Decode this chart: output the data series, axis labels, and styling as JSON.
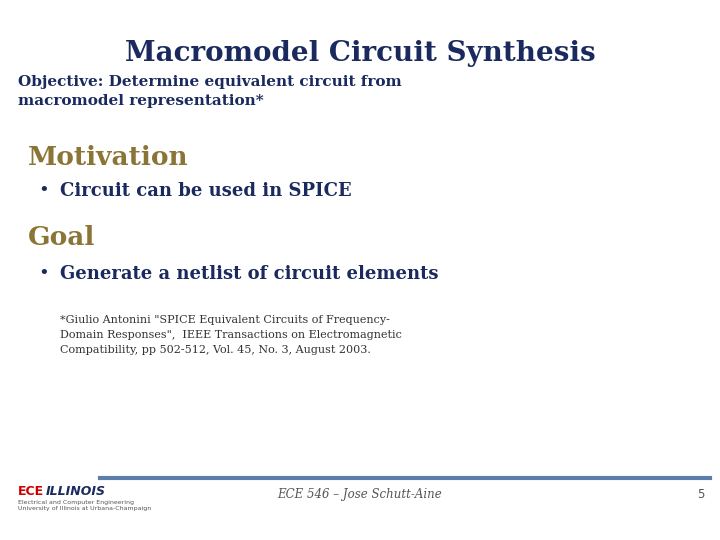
{
  "title": "Macromodel Circuit Synthesis",
  "title_color": "#1a2a5e",
  "title_fontsize": 20,
  "objective_text": "Objective: Determine equivalent circuit from\nmacromodel representation*",
  "objective_color": "#1a2a5e",
  "objective_fontsize": 11,
  "motivation_label": "Motivation",
  "motivation_color": "#8B7536",
  "motivation_fontsize": 19,
  "bullet1_text": "Circuit can be used in SPICE",
  "bullet1_color": "#1a2a5e",
  "bullet1_fontsize": 13,
  "goal_label": "Goal",
  "goal_color": "#8B7536",
  "goal_fontsize": 19,
  "bullet2_text": "Generate a netlist of circuit elements",
  "bullet2_color": "#1a2a5e",
  "bullet2_fontsize": 13,
  "footnote_line1": "*Giulio Antonini \"SPICE Equivalent Circuits of Frequency-",
  "footnote_line2": "Domain Responses\",  IEEE Transactions on Electromagnetic",
  "footnote_line3": "Compatibility, pp 502-512, Vol. 45, No. 3, August 2003.",
  "footnote_color": "#333333",
  "footnote_fontsize": 8,
  "footer_text": "ECE 546 – Jose Schutt-Aine",
  "footer_color": "#555555",
  "footer_fontsize": 8.5,
  "page_number": "5",
  "background_color": "#ffffff",
  "line_color": "#5b7faa",
  "ece_color": "#cc0000",
  "illinois_color": "#1a2a5e",
  "logo_fontsize": 9,
  "logo_small_fontsize": 4.5,
  "logo_small_text": "Electrical and Computer Engineering\nUniversity of Illinois at Urbana-Champaign"
}
